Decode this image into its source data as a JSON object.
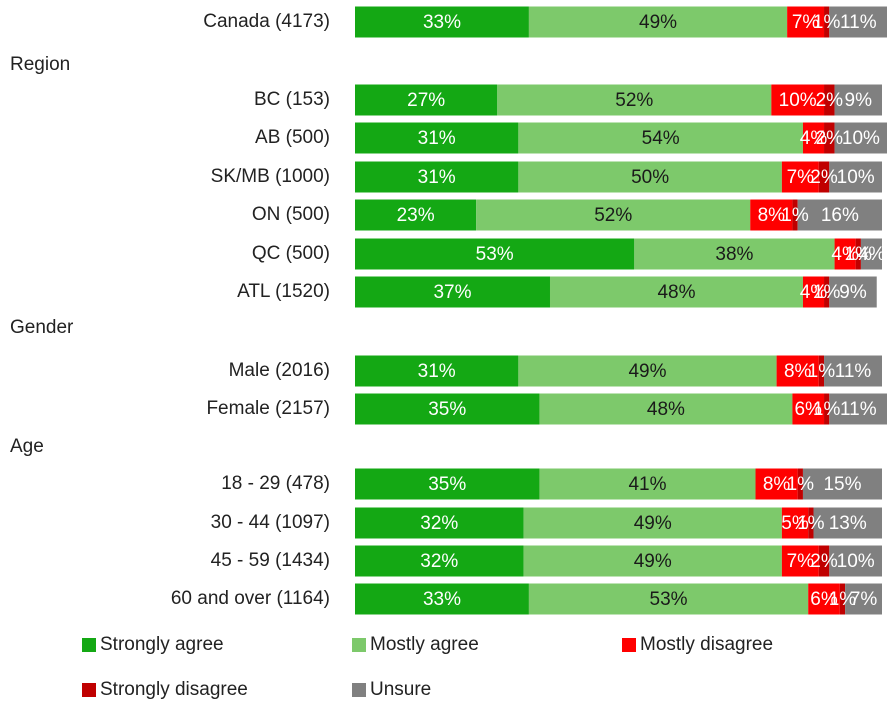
{
  "chart_data": {
    "type": "stacked-bar",
    "categories": [
      "Canada (4173)",
      "BC (153)",
      "AB (500)",
      "SK/MB  (1000)",
      "ON (500)",
      "QC (500)",
      "ATL (1520)",
      "Male (2016)",
      "Female (2157)",
      "18 - 29 (478)",
      "30 - 44 (1097)",
      "45 - 59 (1434)",
      "60 and over (1164)"
    ],
    "group_headers": [
      null,
      "Region",
      null,
      null,
      null,
      null,
      null,
      "Gender",
      null,
      "Age",
      null,
      null,
      null
    ],
    "series": [
      {
        "name": "Strongly agree",
        "color": "#14a814",
        "label_color": "#ffffff",
        "values": [
          33,
          27,
          31,
          31,
          23,
          53,
          37,
          31,
          35,
          35,
          32,
          32,
          33
        ],
        "value_labels": [
          "33%",
          "27%",
          "31%",
          "31%",
          "23%",
          "53%",
          "37%",
          "31%",
          "35%",
          "35%",
          "32%",
          "32%",
          "33%"
        ]
      },
      {
        "name": "Mostly agree",
        "color": "#7dc96b",
        "label_color": "#1a1a1a",
        "values": [
          49,
          52,
          54,
          50,
          52,
          38,
          48,
          49,
          48,
          41,
          49,
          49,
          53
        ],
        "value_labels": [
          "49%",
          "52%",
          "54%",
          "50%",
          "52%",
          "38%",
          "48%",
          "49%",
          "48%",
          "41%",
          "49%",
          "49%",
          "53%"
        ]
      },
      {
        "name": "Mostly disagree",
        "color": "#ff0000",
        "label_color": "#ffffff",
        "values": [
          7,
          10,
          4,
          7,
          8,
          4,
          4,
          8,
          6,
          8,
          5,
          7,
          6
        ],
        "value_labels": [
          "7%",
          "10%",
          "4%",
          "7%",
          "8%",
          "4%",
          "4%",
          "8%",
          "6%",
          "8%",
          "5%",
          "7%",
          "6%"
        ]
      },
      {
        "name": "Strongly disagree",
        "color": "#c00000",
        "label_color": "#ffffff",
        "values": [
          1,
          2,
          2,
          2,
          1,
          1,
          1,
          1,
          1,
          1,
          1,
          2,
          1
        ],
        "value_labels": [
          "1%",
          "2%",
          "2%",
          "2%",
          "1%",
          "1%",
          "1%",
          "1%",
          "1%",
          "1%",
          "1%",
          "2%",
          "1%"
        ]
      },
      {
        "name": "Unsure",
        "color": "#808080",
        "label_color": "#ffffff",
        "values": [
          11,
          9,
          10,
          10,
          16,
          4,
          9,
          11,
          11,
          15,
          13,
          10,
          7
        ],
        "value_labels": [
          "11%",
          "9%",
          "10%",
          "10%",
          "16%",
          "4%",
          "9%",
          "11%",
          "11%",
          "15%",
          "13%",
          "10%",
          "7%"
        ]
      }
    ]
  }
}
